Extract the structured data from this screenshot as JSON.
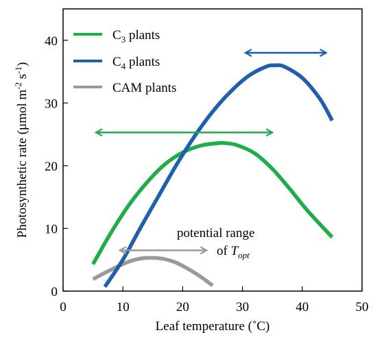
{
  "chart_data": {
    "type": "line",
    "xlabel": "Leaf temperature (˚C)",
    "ylabel_main": "Photosynthetic rate (μmol m",
    "ylabel_sup1": "-2",
    "ylabel_mid": " s",
    "ylabel_sup2": "-1",
    "ylabel_end": ")",
    "xlim": [
      0,
      50
    ],
    "ylim": [
      0,
      45
    ],
    "xticks": [
      0,
      10,
      20,
      30,
      40,
      50
    ],
    "yticks": [
      0,
      10,
      20,
      30,
      40
    ],
    "xtick_labels": [
      "0",
      "10",
      "20",
      "30",
      "40",
      "50"
    ],
    "ytick_labels": [
      "0",
      "10",
      "20",
      "30",
      "40"
    ],
    "legend_position": "top-left",
    "series": [
      {
        "name_main": "C",
        "name_sub": "3",
        "name_rest": " plants",
        "color": "#1fad4a",
        "x": [
          5,
          8,
          11,
          14,
          17,
          20,
          23,
          26,
          27,
          29,
          32,
          35,
          38,
          41,
          45
        ],
        "y": [
          4.3,
          9.3,
          13.7,
          17.3,
          20.2,
          22.1,
          23.2,
          23.6,
          23.6,
          23.3,
          22.0,
          19.5,
          16.2,
          12.7,
          8.6
        ]
      },
      {
        "name_main": "C",
        "name_sub": "4",
        "name_rest": " plants",
        "color": "#1f5fad",
        "x": [
          7,
          10,
          13,
          16,
          19,
          22,
          25,
          28,
          31,
          34,
          35.5,
          37,
          40,
          43,
          45
        ],
        "y": [
          0.7,
          5.0,
          10.2,
          15.2,
          20.2,
          24.7,
          28.6,
          31.8,
          34.3,
          35.8,
          36.0,
          35.8,
          34.0,
          30.6,
          27.2
        ]
      },
      {
        "name_main": "CAM plants",
        "name_sub": "",
        "name_rest": "",
        "color": "#9a9a9a",
        "x": [
          5,
          8,
          11,
          13,
          15,
          17,
          19,
          21,
          23,
          25
        ],
        "y": [
          1.9,
          3.4,
          4.7,
          5.2,
          5.3,
          5.1,
          4.5,
          3.5,
          2.3,
          0.9
        ]
      }
    ],
    "ranges": [
      {
        "color": "#1fad4a",
        "x": [
          5.5,
          35
        ],
        "y": 25.3
      },
      {
        "color": "#1f5fad",
        "x": [
          30.5,
          44
        ],
        "y": 38.0
      },
      {
        "color": "#9a9a9a",
        "x": [
          9.5,
          24
        ],
        "y": 6.5
      }
    ],
    "annotation": {
      "line1": "potential range",
      "line2_prefix": "of ",
      "line2_T": "T",
      "line2_sub": "opt"
    }
  }
}
